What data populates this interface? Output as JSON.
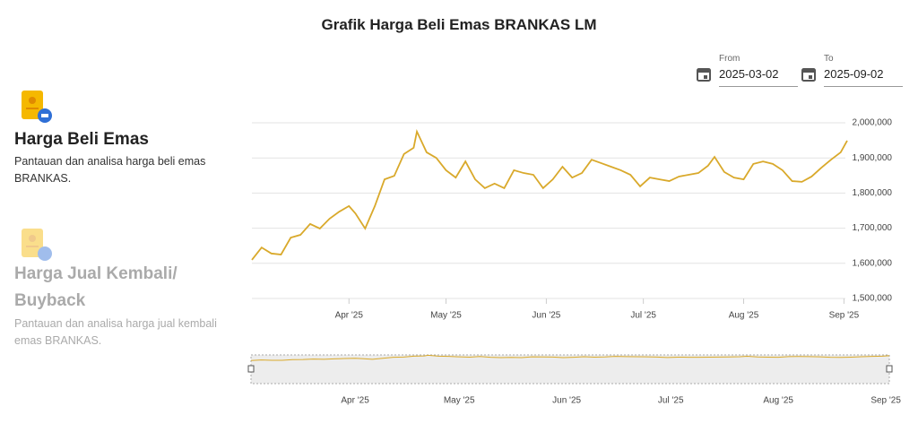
{
  "header": {
    "title": "Grafik Harga Beli Emas BRANKAS LM"
  },
  "date_range": {
    "from_label": "From",
    "from": "2025-03-02",
    "to_label": "To",
    "to": "2025-09-02"
  },
  "menu": [
    {
      "title": "Harga Beli Emas",
      "description": "Pantauan dan analisa harga beli emas BRANKAS."
    },
    {
      "title": "Harga Jual Kembali/ Buyback",
      "description": "Pantauan dan analisa harga jual kembali emas BRANKAS."
    }
  ],
  "chart_data": {
    "type": "line",
    "color": "#d9a92b",
    "grid": true,
    "x": [
      "2025-03-02",
      "2025-03-05",
      "2025-03-08",
      "2025-03-11",
      "2025-03-14",
      "2025-03-17",
      "2025-03-20",
      "2025-03-23",
      "2025-03-26",
      "2025-03-29",
      "2025-04-01",
      "2025-04-03",
      "2025-04-06",
      "2025-04-09",
      "2025-04-12",
      "2025-04-15",
      "2025-04-18",
      "2025-04-21",
      "2025-04-22",
      "2025-04-25",
      "2025-04-28",
      "2025-05-01",
      "2025-05-04",
      "2025-05-07",
      "2025-05-10",
      "2025-05-13",
      "2025-05-16",
      "2025-05-19",
      "2025-05-22",
      "2025-05-25",
      "2025-05-28",
      "2025-05-31",
      "2025-06-03",
      "2025-06-06",
      "2025-06-09",
      "2025-06-12",
      "2025-06-15",
      "2025-06-18",
      "2025-06-21",
      "2025-06-24",
      "2025-06-27",
      "2025-06-30",
      "2025-07-03",
      "2025-07-06",
      "2025-07-09",
      "2025-07-12",
      "2025-07-15",
      "2025-07-18",
      "2025-07-21",
      "2025-07-23",
      "2025-07-26",
      "2025-07-29",
      "2025-08-01",
      "2025-08-04",
      "2025-08-07",
      "2025-08-10",
      "2025-08-13",
      "2025-08-16",
      "2025-08-19",
      "2025-08-22",
      "2025-08-25",
      "2025-08-28",
      "2025-08-31",
      "2025-09-02"
    ],
    "values": [
      1610000,
      1645000,
      1628000,
      1625000,
      1673000,
      1681000,
      1712000,
      1699000,
      1727000,
      1747000,
      1763000,
      1742000,
      1699000,
      1763000,
      1839000,
      1849000,
      1911000,
      1929000,
      1975000,
      1916000,
      1900000,
      1865000,
      1844000,
      1890000,
      1839000,
      1814000,
      1827000,
      1814000,
      1865000,
      1857000,
      1852000,
      1814000,
      1839000,
      1875000,
      1844000,
      1857000,
      1895000,
      1885000,
      1875000,
      1865000,
      1852000,
      1819000,
      1844000,
      1839000,
      1834000,
      1847000,
      1852000,
      1857000,
      1878000,
      1903000,
      1860000,
      1844000,
      1839000,
      1883000,
      1890000,
      1883000,
      1865000,
      1834000,
      1832000,
      1847000,
      1872000,
      1895000,
      1916000,
      1949000
    ],
    "xlim": [
      "2025-03-02",
      "2025-09-02"
    ],
    "xticks": [
      {
        "value": "2025-04-01",
        "label": "Apr '25"
      },
      {
        "value": "2025-05-01",
        "label": "May '25"
      },
      {
        "value": "2025-06-01",
        "label": "Jun '25"
      },
      {
        "value": "2025-07-01",
        "label": "Jul '25"
      },
      {
        "value": "2025-08-01",
        "label": "Aug '25"
      },
      {
        "value": "2025-09-01",
        "label": "Sep '25"
      }
    ],
    "ylim": [
      1500000,
      2000000
    ],
    "yticks": [
      {
        "value": 1500000,
        "label": "1,500,000"
      },
      {
        "value": 1600000,
        "label": "1,600,000"
      },
      {
        "value": 1700000,
        "label": "1,700,000"
      },
      {
        "value": 1800000,
        "label": "1,800,000"
      },
      {
        "value": 1900000,
        "label": "1,900,000"
      },
      {
        "value": 2000000,
        "label": "2,000,000"
      }
    ]
  },
  "navigator": {
    "xticks": [
      {
        "value": "2025-04-01",
        "label": "Apr '25"
      },
      {
        "value": "2025-05-01",
        "label": "May '25"
      },
      {
        "value": "2025-06-01",
        "label": "Jun '25"
      },
      {
        "value": "2025-07-01",
        "label": "Jul '25"
      },
      {
        "value": "2025-08-01",
        "label": "Aug '25"
      },
      {
        "value": "2025-09-01",
        "label": "Sep '25"
      }
    ]
  }
}
